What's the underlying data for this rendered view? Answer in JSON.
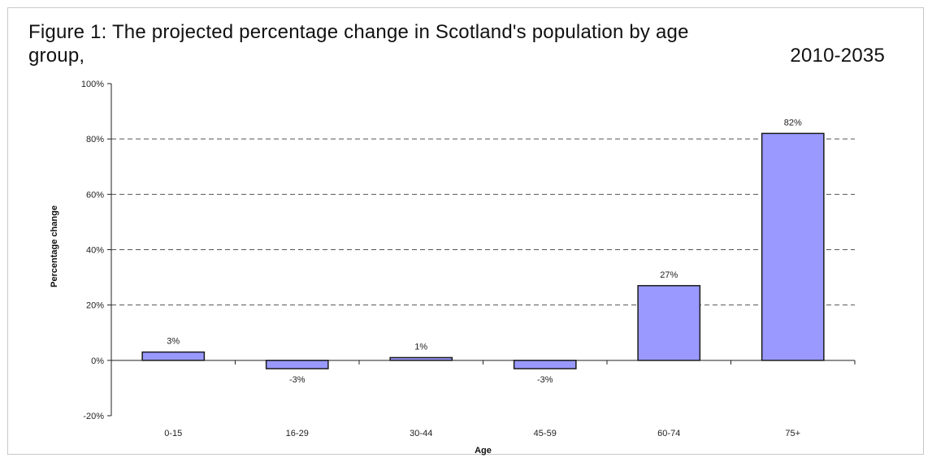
{
  "chart_data": {
    "type": "bar",
    "title_line1": "Figure 1: The projected percentage change in Scotland's population by age",
    "title_line2_left": "group,",
    "title_line2_right": "2010-2035",
    "xlabel": "Age",
    "ylabel": "Percentage change",
    "categories": [
      "0-15",
      "16-29",
      "30-44",
      "45-59",
      "60-74",
      "75+"
    ],
    "values": [
      3,
      -3,
      1,
      -3,
      27,
      82
    ],
    "data_labels": [
      "3%",
      "-3%",
      "1%",
      "-3%",
      "27%",
      "82%"
    ],
    "ylim": [
      -20,
      100
    ],
    "yticks": [
      -20,
      0,
      20,
      40,
      60,
      80,
      100
    ],
    "ytick_labels": [
      "-20%",
      "0%",
      "20%",
      "40%",
      "60%",
      "80%",
      "100%"
    ],
    "grid": "horizontal dashed",
    "bar_color": "#9999ff",
    "bar_edge_color": "#1a1a1a"
  }
}
